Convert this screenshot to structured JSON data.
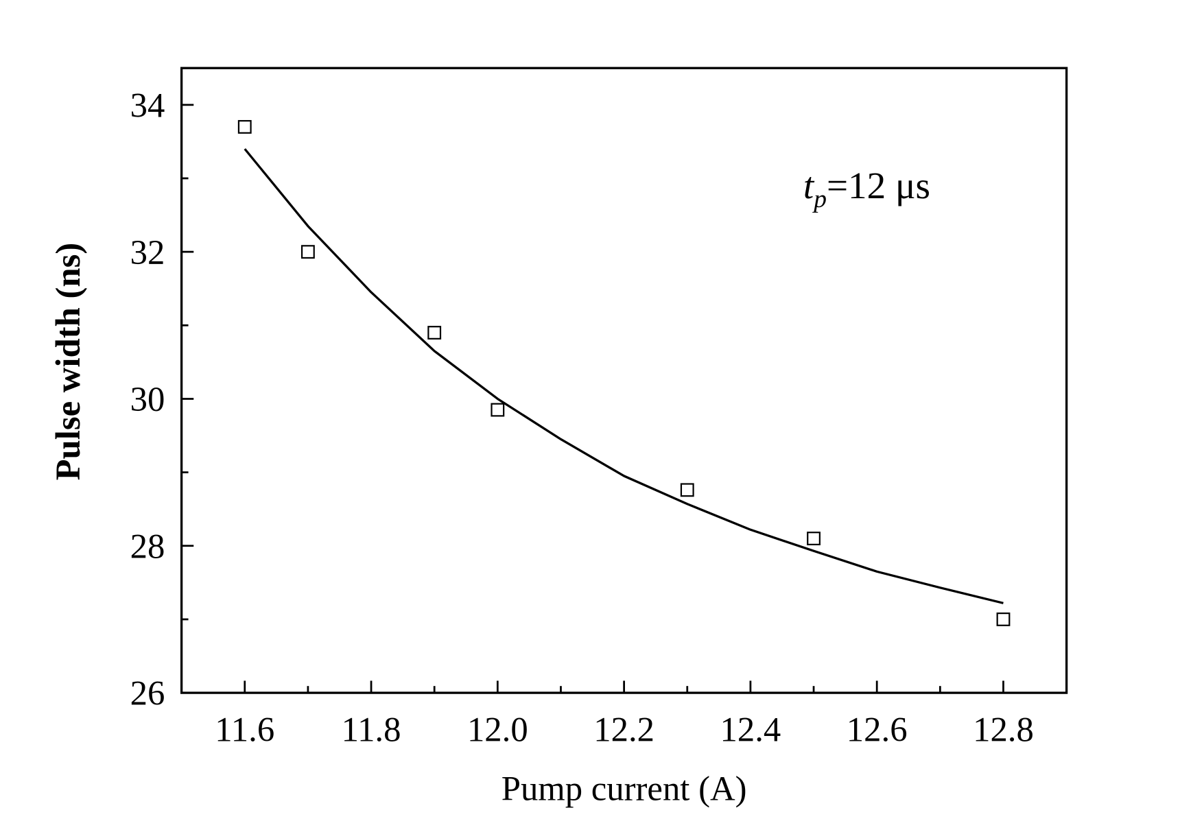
{
  "chart_data": {
    "type": "scatter",
    "title": "",
    "xlabel": "Pump current (A)",
    "ylabel": "Pulse width (ns)",
    "xlim": [
      11.5,
      12.9
    ],
    "ylim": [
      26,
      34.5
    ],
    "xticks": [
      11.6,
      11.8,
      12.0,
      12.2,
      12.4,
      12.6,
      12.8
    ],
    "xtick_labels": [
      "11.6",
      "11.8",
      "12.0",
      "12.2",
      "12.4",
      "12.6",
      "12.8"
    ],
    "yticks": [
      26,
      28,
      30,
      32,
      34
    ],
    "ytick_labels": [
      "26",
      "28",
      "30",
      "32",
      "34"
    ],
    "grid": false,
    "annotation": {
      "t": "t",
      "sub": "p",
      "rest": "=12 μs"
    },
    "series": [
      {
        "name": "measured",
        "marker": "open-square",
        "x": [
          11.6,
          11.7,
          11.9,
          12.0,
          12.3,
          12.5,
          12.8
        ],
        "y": [
          33.7,
          32.0,
          30.9,
          29.85,
          28.76,
          28.1,
          27.0
        ]
      },
      {
        "name": "fit",
        "style": "line",
        "x": [
          11.6,
          11.7,
          11.8,
          11.9,
          12.0,
          12.1,
          12.2,
          12.3,
          12.4,
          12.5,
          12.6,
          12.7,
          12.8
        ],
        "y": [
          33.4,
          32.35,
          31.45,
          30.65,
          30.0,
          29.45,
          28.95,
          28.57,
          28.22,
          27.93,
          27.65,
          27.43,
          27.22
        ]
      }
    ]
  }
}
